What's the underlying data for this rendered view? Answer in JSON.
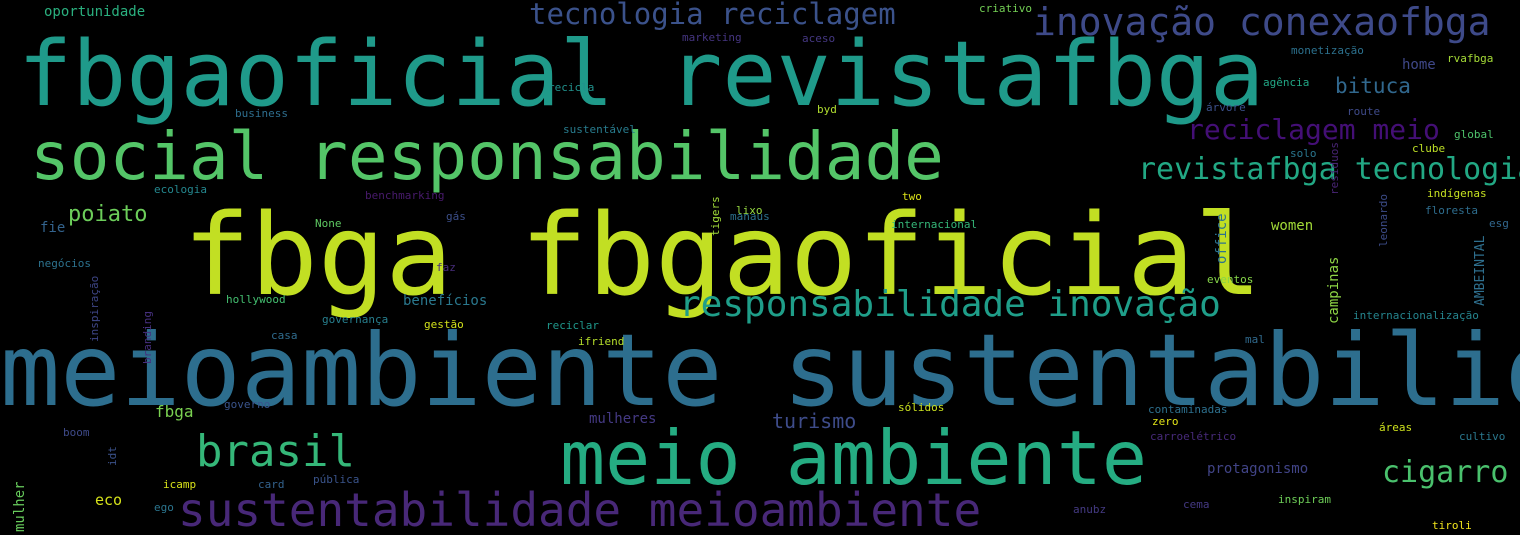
{
  "word_cloud": {
    "background": "#000000",
    "words": [
      {
        "text": "fbga fbgaoficial",
        "color": "#c2df23"
      },
      {
        "text": "meioambiente sustentabilidade",
        "color": "#2d6e8e"
      },
      {
        "text": "fbgaoficial revistafbga",
        "color": "#1f9a8a"
      },
      {
        "text": "social responsabilidade",
        "color": "#54c568"
      },
      {
        "text": "meio ambiente",
        "color": "#25ac82"
      },
      {
        "text": "sustentabilidade meioambiente",
        "color": "#482878"
      },
      {
        "text": "inovação conexaofbga",
        "color": "#3e4a89"
      },
      {
        "text": "responsabilidade inovação",
        "color": "#1f9e89"
      },
      {
        "text": "tecnologia reciclagem",
        "color": "#3b528b"
      },
      {
        "text": "brasil",
        "color": "#35b779"
      },
      {
        "text": "revistafbga tecnologia",
        "color": "#22a884"
      },
      {
        "text": "reciclagem meio",
        "color": "#440f76"
      },
      {
        "text": "cigarro",
        "color": "#4ac16d"
      },
      {
        "text": "bituca",
        "color": "#31688e"
      },
      {
        "text": "poiato",
        "color": "#6ccd5a"
      },
      {
        "text": "turismo",
        "color": "#3e4c8a"
      },
      {
        "text": "protagonismo",
        "color": "#414487"
      },
      {
        "text": "benefícios",
        "color": "#2a788e"
      },
      {
        "text": "women",
        "color": "#a2da37"
      },
      {
        "text": "fbga",
        "color": "#7ad151"
      },
      {
        "text": "mulheres",
        "color": "#443983"
      },
      {
        "text": "office",
        "color": "#2c728e"
      },
      {
        "text": "oportunidade",
        "color": "#2ab07f"
      },
      {
        "text": "campinas",
        "color": "#8ed645"
      },
      {
        "text": "home",
        "color": "#3f4889"
      },
      {
        "text": "eco",
        "color": "#d5e21a"
      },
      {
        "text": "mulher",
        "color": "#67cc5c"
      },
      {
        "text": "AMBEINTAL",
        "color": "#2e6f8e"
      },
      {
        "text": "fie",
        "color": "#33638d"
      },
      {
        "text": "criativo",
        "color": "#74d055"
      },
      {
        "text": "marketing",
        "color": "#453581"
      },
      {
        "text": "aceso",
        "color": "#453882"
      },
      {
        "text": "monetização",
        "color": "#2c718e"
      },
      {
        "text": "rvafbga",
        "color": "#a5db36"
      },
      {
        "text": "agência",
        "color": "#22a785"
      },
      {
        "text": "recicla",
        "color": "#21918c"
      },
      {
        "text": "árvore",
        "color": "#3b518b"
      },
      {
        "text": "route",
        "color": "#3e4a89"
      },
      {
        "text": "business",
        "color": "#2e6e8e"
      },
      {
        "text": "byd",
        "color": "#b0dd2f"
      },
      {
        "text": "sustentável",
        "color": "#287c8e"
      },
      {
        "text": "global",
        "color": "#4ec36b"
      },
      {
        "text": "resíduos",
        "color": "#482475"
      },
      {
        "text": "clube",
        "color": "#bddf26"
      },
      {
        "text": "solo",
        "color": "#2a768e"
      },
      {
        "text": "ecologia",
        "color": "#24878e"
      },
      {
        "text": "benchmarking",
        "color": "#481a6c"
      },
      {
        "text": "two",
        "color": "#dde318"
      },
      {
        "text": "indígenas",
        "color": "#c5e021"
      },
      {
        "text": "tigers",
        "color": "#a0da39"
      },
      {
        "text": "lixo",
        "color": "#95d840"
      },
      {
        "text": "manaus",
        "color": "#2c728e"
      },
      {
        "text": "leonardo",
        "color": "#3d4d8a"
      },
      {
        "text": "floresta",
        "color": "#2e6d8e"
      },
      {
        "text": "gás",
        "color": "#3c4f8a"
      },
      {
        "text": "None",
        "color": "#5ec962"
      },
      {
        "text": "internacional",
        "color": "#35b779"
      },
      {
        "text": "esg",
        "color": "#31678e"
      },
      {
        "text": "faz",
        "color": "#472d7b"
      },
      {
        "text": "negócios",
        "color": "#2c728e"
      },
      {
        "text": "inspiração",
        "color": "#3f4788"
      },
      {
        "text": "hollywood",
        "color": "#44bf70"
      },
      {
        "text": "eventos",
        "color": "#86d549"
      },
      {
        "text": "branding",
        "color": "#46307e"
      },
      {
        "text": "governança",
        "color": "#277f8e"
      },
      {
        "text": "gestão",
        "color": "#d2e21b"
      },
      {
        "text": "casa",
        "color": "#2f6c8e"
      },
      {
        "text": "reciclar",
        "color": "#1f978b"
      },
      {
        "text": "internacionalização",
        "color": "#25858e"
      },
      {
        "text": "ifriend",
        "color": "#b5de2b"
      },
      {
        "text": "mal",
        "color": "#306a8e"
      },
      {
        "text": "governo",
        "color": "#3a548c"
      },
      {
        "text": "sólidos",
        "color": "#cae11f"
      },
      {
        "text": "contaminadas",
        "color": "#2d708e"
      },
      {
        "text": "zero",
        "color": "#e2e418"
      },
      {
        "text": "boom",
        "color": "#3e4a89"
      },
      {
        "text": "idt",
        "color": "#3b528b"
      },
      {
        "text": "carroelétrico",
        "color": "#472a7a"
      },
      {
        "text": "áreas",
        "color": "#cde11d"
      },
      {
        "text": "cultivo",
        "color": "#2a788e"
      },
      {
        "text": "icamp",
        "color": "#d8e219"
      },
      {
        "text": "card",
        "color": "#33628d"
      },
      {
        "text": "pública",
        "color": "#3a548c"
      },
      {
        "text": "ego",
        "color": "#2b758e"
      },
      {
        "text": "anubz",
        "color": "#443a83"
      },
      {
        "text": "cema",
        "color": "#443983"
      },
      {
        "text": "inspiram",
        "color": "#6ece58"
      },
      {
        "text": "tiroli",
        "color": "#f1e51d"
      }
    ]
  }
}
